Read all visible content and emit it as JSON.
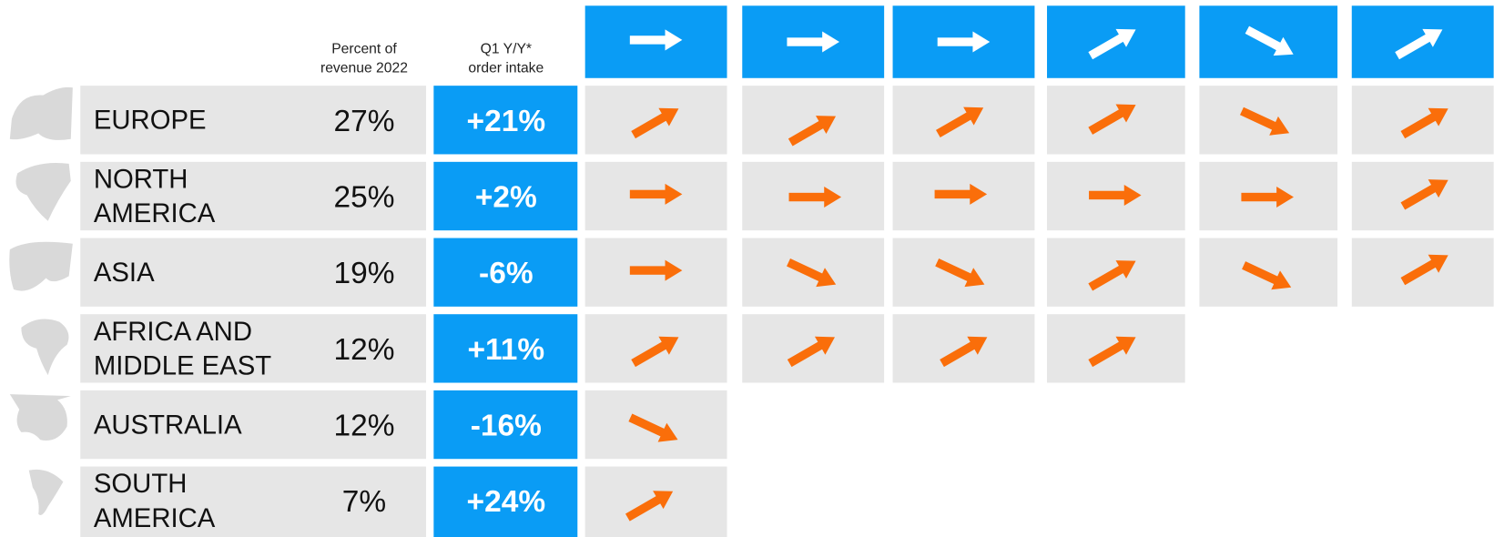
{
  "header": {
    "percent_label": [
      "Percent of",
      "revenue 2022"
    ],
    "change_label": [
      "Q1 Y/Y*",
      "order intake"
    ]
  },
  "rows": [
    {
      "region": [
        "EUROPE"
      ],
      "percent": "27%",
      "change": "+21%"
    },
    {
      "region": [
        "NORTH",
        "AMERICA"
      ],
      "percent": "25%",
      "change": "+2%"
    },
    {
      "region": [
        "ASIA"
      ],
      "percent": "19%",
      "change": "-6%"
    },
    {
      "region": [
        "AFRICA AND",
        "MIDDLE EAST"
      ],
      "percent": "12%",
      "change": "+11%"
    },
    {
      "region": [
        "AUSTRALIA"
      ],
      "percent": "12%",
      "change": "-16%"
    },
    {
      "region": [
        "SOUTH",
        "AMERICA"
      ],
      "percent": "7%",
      "change": "+24%"
    }
  ]
}
